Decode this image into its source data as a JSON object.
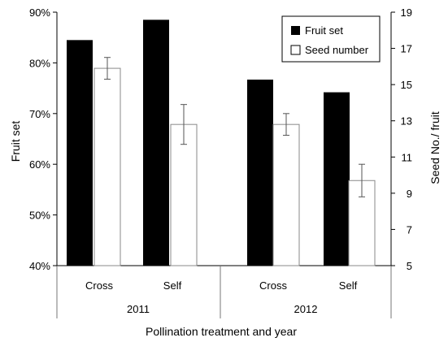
{
  "chart_data": {
    "type": "bar",
    "title": "",
    "xlabel": "Pollination treatment and year",
    "ylabel": "Fruit set",
    "y2label": "Seed No./ fruit",
    "ylim": [
      40,
      90
    ],
    "y2lim": [
      5,
      19
    ],
    "yticks": [
      "40%",
      "50%",
      "60%",
      "70%",
      "80%",
      "90%"
    ],
    "y2ticks": [
      "5",
      "7",
      "9",
      "11",
      "13",
      "15",
      "17",
      "19"
    ],
    "groups": [
      "2011",
      "2012"
    ],
    "categories": [
      "Cross",
      "Self",
      "Cross",
      "Self"
    ],
    "grid": false,
    "legend_position": "top-right",
    "series": [
      {
        "name": "Fruit set",
        "axis": "left",
        "color": "#000000",
        "values": [
          84.5,
          88.5,
          76.7,
          74.2
        ]
      },
      {
        "name": "Seed number",
        "axis": "right",
        "color": "#ffffff",
        "values": [
          15.9,
          12.8,
          12.8,
          9.7
        ],
        "error": [
          0.6,
          1.1,
          0.6,
          0.9
        ]
      }
    ]
  }
}
